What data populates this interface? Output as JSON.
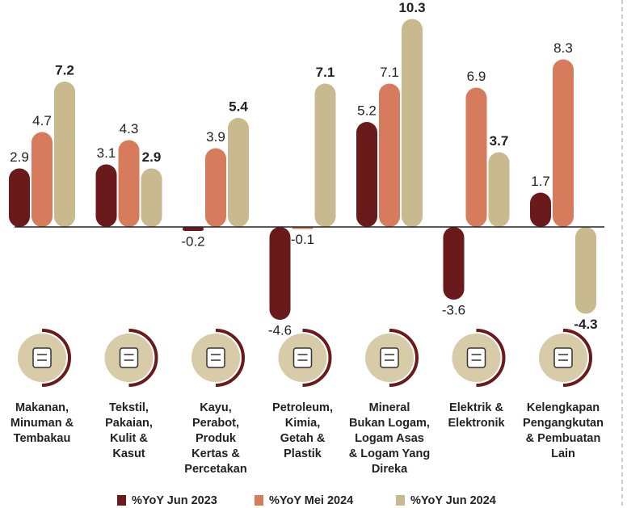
{
  "chart_data": {
    "type": "bar",
    "categories": [
      [
        "Makanan,",
        "Minuman &",
        "Tembakau"
      ],
      [
        "Tekstil,",
        "Pakaian,",
        "Kulit &",
        "Kasut"
      ],
      [
        "Kayu,",
        "Perabot,",
        "Produk",
        "Kertas &",
        "Percetakan"
      ],
      [
        "Petroleum,",
        "Kimia,",
        "Getah &",
        "Plastik"
      ],
      [
        "Mineral",
        "Bukan Logam,",
        "Logam Asas",
        "& Logam Yang",
        "Direka"
      ],
      [
        "Elektrik &",
        "Elektronik"
      ],
      [
        "Kelengkapan",
        "Pengangkutan",
        "& Pembuatan",
        "Lain"
      ]
    ],
    "series": [
      {
        "name": "%YoY Jun 2023",
        "color": "#6b1a1c",
        "values": [
          2.9,
          3.1,
          -0.2,
          -4.6,
          5.2,
          -3.6,
          1.7
        ]
      },
      {
        "name": "%YoY Mei 2024",
        "color": "#d67b5b",
        "values": [
          4.7,
          4.3,
          3.9,
          -0.1,
          7.1,
          6.9,
          8.3
        ]
      },
      {
        "name": "%YoY Jun 2024",
        "color": "#c8ba8e",
        "values": [
          7.2,
          2.9,
          5.4,
          7.1,
          10.3,
          3.7,
          -4.3
        ]
      }
    ],
    "ylim": [
      -5,
      11
    ],
    "legend": "bottom"
  }
}
